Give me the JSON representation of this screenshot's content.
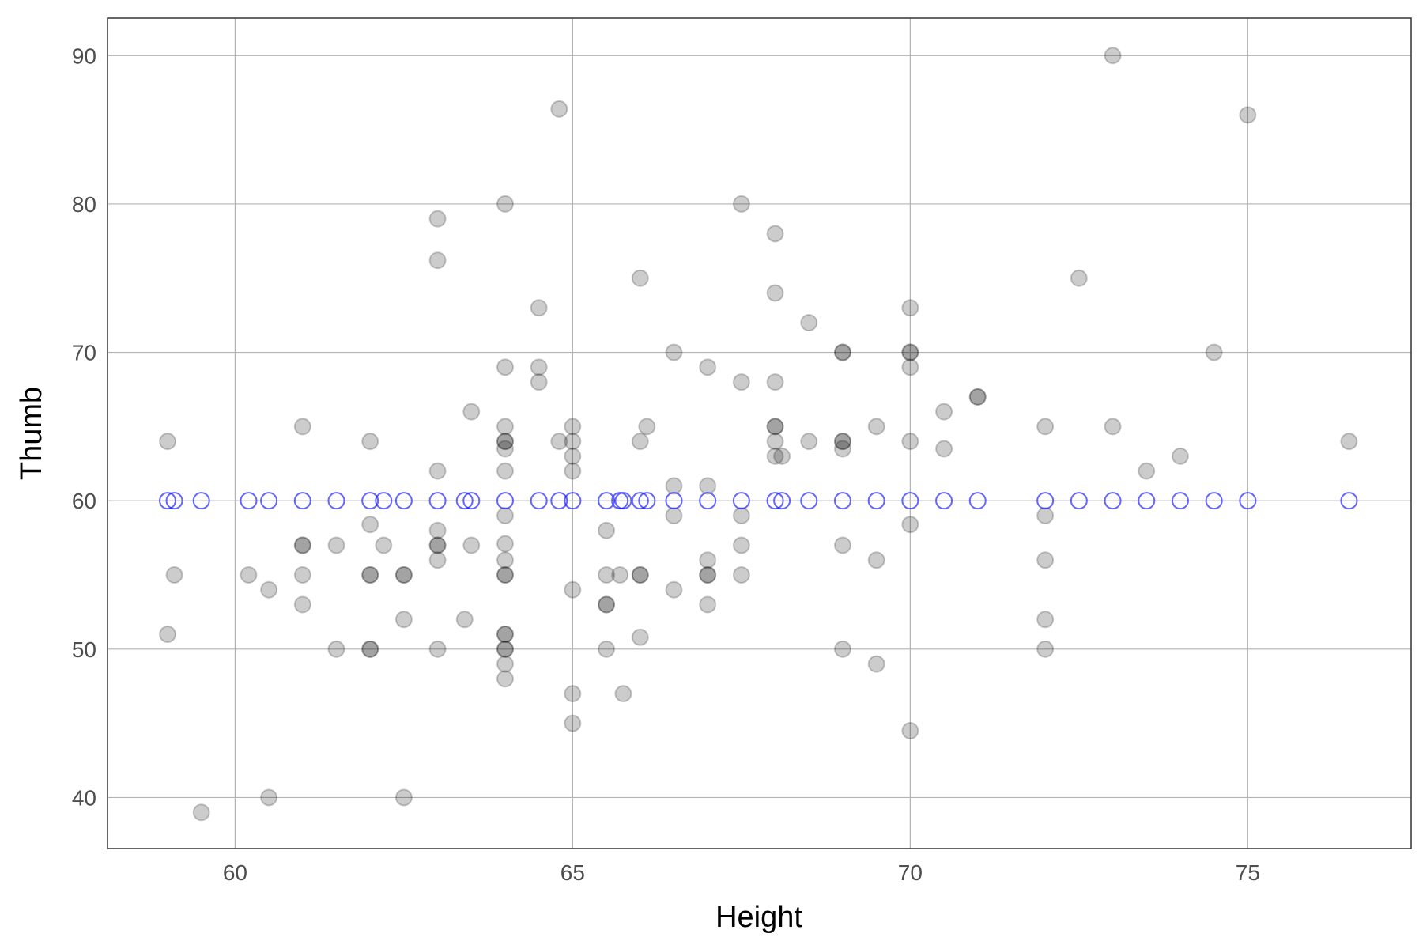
{
  "chart_data": {
    "type": "scatter",
    "x_label": "Height",
    "y_label": "Thumb",
    "xlim": [
      58.11,
      77.42
    ],
    "ylim": [
      36.56,
      92.52
    ],
    "xticks": [
      60,
      65,
      70,
      75
    ],
    "yticks": [
      40,
      50,
      60,
      70,
      80,
      90
    ],
    "grid": true,
    "series": [
      {
        "color": "#000000",
        "filled": true,
        "x": [
          59,
          59,
          59.1,
          59.5,
          60.2,
          60.5,
          60.5,
          61,
          61,
          61,
          61,
          61,
          61.5,
          61.5,
          62,
          62,
          62,
          62,
          62,
          62,
          62.2,
          62.5,
          62.5,
          62.5,
          62.5,
          63,
          63,
          63,
          63,
          63,
          63,
          63,
          63,
          63.4,
          63.5,
          63.5,
          64,
          64,
          64,
          64,
          64,
          64,
          64,
          64,
          64,
          64,
          64,
          64,
          64,
          64,
          64,
          64,
          64,
          64,
          64.5,
          64.5,
          64.5,
          64.8,
          64.8,
          65,
          65,
          65,
          65,
          65,
          65,
          65,
          65.5,
          65.5,
          65.5,
          65.5,
          65.5,
          65.7,
          65.75,
          66,
          66,
          66,
          66,
          66,
          66.1,
          66.5,
          66.5,
          66.5,
          66.5,
          67,
          67,
          67,
          67,
          67,
          67,
          67.5,
          67.5,
          67.5,
          67.5,
          67.5,
          68,
          68,
          68,
          68,
          68,
          68,
          68,
          68.1,
          68.5,
          68.5,
          69,
          69,
          69,
          69,
          69,
          69,
          69,
          69.5,
          69.5,
          69.5,
          70,
          70,
          70,
          70,
          70,
          70,
          70,
          70.5,
          70.5,
          71,
          71,
          72,
          72,
          72,
          72,
          72,
          72.5,
          73,
          73,
          73.5,
          74,
          74.5,
          75,
          76.5
        ],
        "values": [
          64,
          51,
          55,
          39,
          55,
          54,
          40,
          65,
          57,
          57,
          55,
          53,
          57,
          50,
          64,
          58.4,
          55,
          55,
          50,
          50,
          57,
          55,
          55,
          52,
          40,
          79,
          76.2,
          62,
          58,
          57,
          57,
          56,
          50,
          52,
          66,
          57,
          80,
          69,
          65,
          64,
          64,
          63.5,
          62,
          59,
          57.1,
          56,
          55,
          55,
          51,
          51,
          50,
          50,
          49,
          48,
          73,
          69,
          68,
          86.4,
          64,
          65,
          64,
          63,
          62,
          54,
          47,
          45,
          58,
          55,
          53,
          53,
          50,
          55,
          47,
          75,
          64,
          55,
          55,
          50.8,
          65,
          70,
          61,
          59,
          54,
          69,
          61,
          56,
          55,
          55,
          53,
          80,
          68,
          59,
          57,
          55,
          78,
          74,
          68,
          65,
          65,
          64,
          63,
          63,
          72,
          64,
          70,
          70,
          64,
          64,
          63.5,
          57,
          50,
          65,
          56,
          49,
          73,
          70,
          70,
          69,
          64,
          58.4,
          44.5,
          66,
          63.5,
          67,
          67,
          65,
          59,
          56,
          52,
          50,
          75,
          90,
          65,
          62,
          63,
          70,
          86,
          64
        ]
      },
      {
        "color": "#0000ff",
        "filled": false,
        "x": [
          59,
          59.1,
          59.5,
          60.2,
          60.5,
          61,
          61.5,
          62,
          62.2,
          62.5,
          63,
          63.4,
          63.5,
          64,
          64.5,
          64.8,
          65,
          65.5,
          65.7,
          65.75,
          66,
          66.1,
          66.5,
          67,
          67.5,
          68,
          68.1,
          68.5,
          69,
          69.5,
          70,
          70.5,
          71,
          72,
          72.5,
          73,
          73.5,
          74,
          74.5,
          75,
          76.5
        ],
        "values": [
          60,
          60,
          60,
          60,
          60,
          60,
          60,
          60,
          60,
          60,
          60,
          60,
          60,
          60,
          60,
          60,
          60,
          60,
          60,
          60,
          60,
          60,
          60,
          60,
          60,
          60,
          60,
          60,
          60,
          60,
          60,
          60,
          60,
          60,
          60,
          60,
          60,
          60,
          60,
          60,
          60
        ]
      }
    ]
  }
}
